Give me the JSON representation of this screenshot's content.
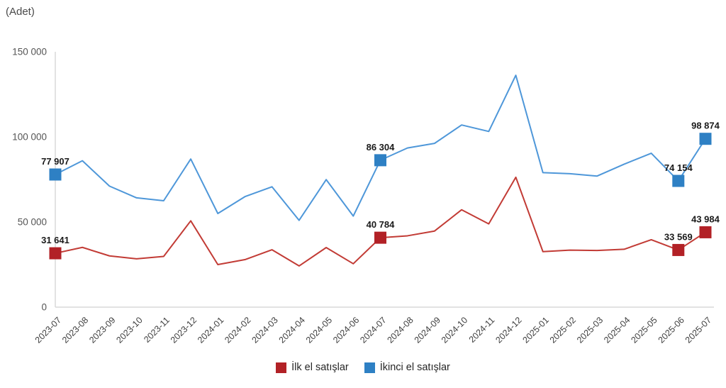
{
  "header": {
    "unit_label": "(Adet)"
  },
  "chart_data": {
    "type": "line",
    "title": "",
    "ylabel": "(Adet)",
    "xlabel": "",
    "ylim": [
      0,
      150000
    ],
    "grid": false,
    "legend_position": "bottom",
    "yticks": [
      {
        "value": 0,
        "label": "0"
      },
      {
        "value": 50000,
        "label": "50 000"
      },
      {
        "value": 100000,
        "label": "100 000"
      },
      {
        "value": 150000,
        "label": "150 000"
      }
    ],
    "categories": [
      "2023-07",
      "2023-08",
      "2023-09",
      "2023-10",
      "2023-11",
      "2023-12",
      "2024-01",
      "2024-02",
      "2024-03",
      "2024-04",
      "2024-05",
      "2024-06",
      "2024-07",
      "2024-08",
      "2024-09",
      "2024-10",
      "2024-11",
      "2024-12",
      "2025-01",
      "2025-02",
      "2025-03",
      "2025-04",
      "2025-05",
      "2025-06",
      "2025-07"
    ],
    "series": [
      {
        "name": "İlk el satışlar",
        "marker_color": "#b22126",
        "line_color": "#c23b35",
        "values": [
          31641,
          35100,
          30100,
          28400,
          29800,
          50700,
          25000,
          27900,
          33700,
          24200,
          35000,
          25500,
          40784,
          41900,
          44700,
          57200,
          48900,
          76300,
          32600,
          33500,
          33300,
          34000,
          39600,
          33569,
          43984
        ],
        "labeled_points": [
          {
            "index": 0,
            "text": "31 641"
          },
          {
            "index": 12,
            "text": "40 784"
          },
          {
            "index": 23,
            "text": "33 569"
          },
          {
            "index": 24,
            "text": "43 984"
          }
        ]
      },
      {
        "name": "İkinci el satışlar",
        "marker_color": "#2e80c4",
        "line_color": "#4e97d9",
        "values": [
          77907,
          86000,
          71100,
          64200,
          62500,
          87000,
          55000,
          64900,
          70700,
          51000,
          74900,
          53500,
          86304,
          93500,
          96200,
          107000,
          103200,
          136200,
          79000,
          78400,
          77000,
          84000,
          90400,
          74154,
          98874
        ],
        "labeled_points": [
          {
            "index": 0,
            "text": "77 907"
          },
          {
            "index": 12,
            "text": "86 304"
          },
          {
            "index": 23,
            "text": "74 154"
          },
          {
            "index": 24,
            "text": "98 874"
          }
        ]
      }
    ]
  }
}
